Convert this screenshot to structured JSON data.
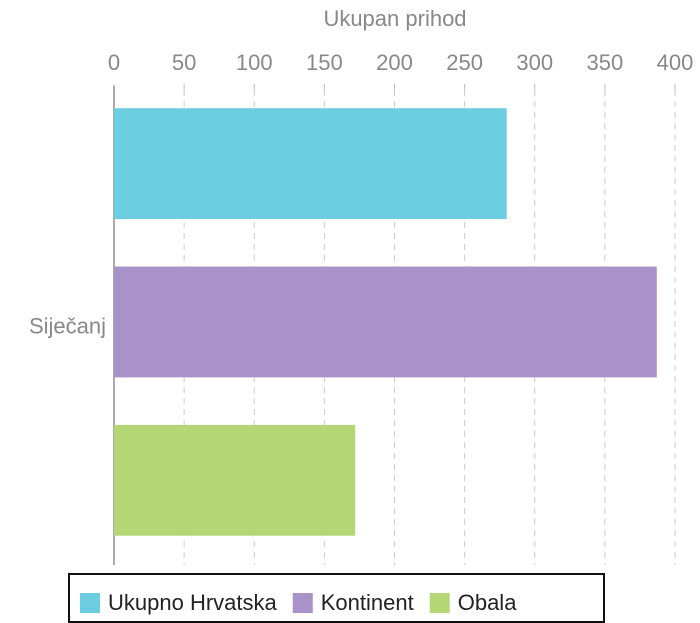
{
  "chart_data": {
    "type": "bar",
    "orientation": "horizontal",
    "xlabel": "Ukupan prihod",
    "categories": [
      "Siječanj"
    ],
    "series": [
      {
        "name": "Ukupno Hrvatska",
        "color": "#6ccde0",
        "values": [
          280
        ]
      },
      {
        "name": "Kontinent",
        "color": "#a991c9",
        "values": [
          387
        ]
      },
      {
        "name": "Obala",
        "color": "#b5d674",
        "values": [
          172
        ]
      }
    ],
    "xlim": [
      0,
      400
    ],
    "xticks": [
      0,
      50,
      100,
      150,
      200,
      250,
      300,
      350,
      400
    ],
    "grid": true,
    "legend": "bottom"
  }
}
